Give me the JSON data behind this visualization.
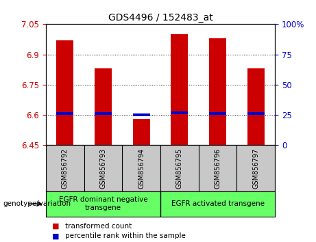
{
  "title": "GDS4496 / 152483_at",
  "samples": [
    "GSM856792",
    "GSM856793",
    "GSM856794",
    "GSM856795",
    "GSM856796",
    "GSM856797"
  ],
  "red_bar_bottom": 6.45,
  "red_bar_tops": [
    6.97,
    6.83,
    6.58,
    7.0,
    6.98,
    6.83
  ],
  "blue_bar_values": [
    6.6,
    6.6,
    6.595,
    6.605,
    6.6,
    6.6
  ],
  "blue_bar_height": 0.013,
  "ylim": [
    6.45,
    7.05
  ],
  "yticks_left": [
    6.45,
    6.6,
    6.75,
    6.9,
    7.05
  ],
  "yticks_right": [
    0,
    25,
    50,
    75,
    100
  ],
  "grid_lines": [
    6.6,
    6.75,
    6.9
  ],
  "group1_label": "EGFR dominant negative\ntransgene",
  "group2_label": "EGFR activated transgene",
  "group_color": "#66FF66",
  "bar_width": 0.45,
  "red_color": "#CC0000",
  "blue_color": "#0000CC",
  "left_axis_color": "#CC0000",
  "right_axis_color": "#0000CC",
  "tick_bg_color": "#C8C8C8",
  "legend_items": [
    "transformed count",
    "percentile rank within the sample"
  ],
  "genotype_label": "genotype/variation"
}
